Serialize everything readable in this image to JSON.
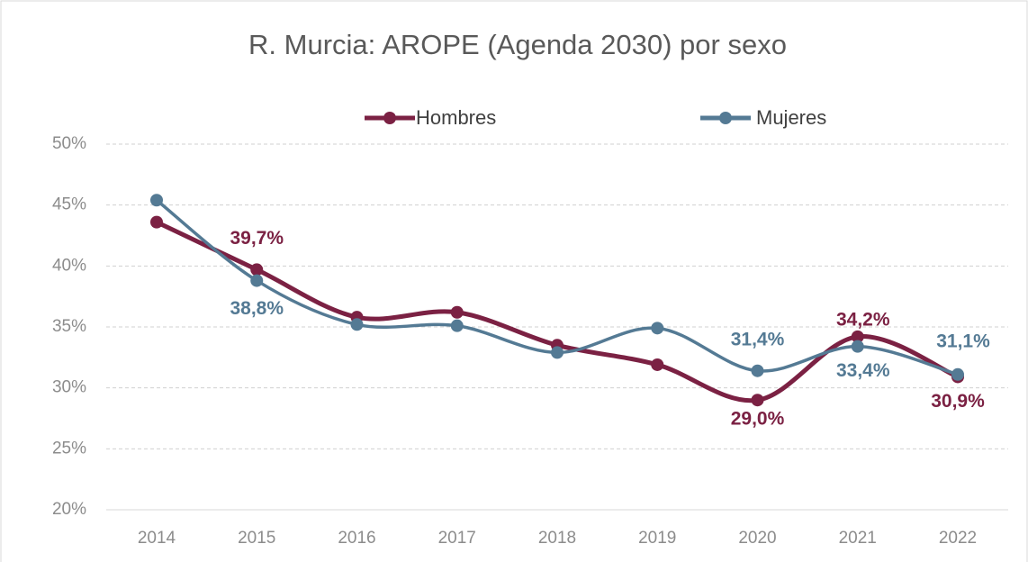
{
  "chart_data": {
    "type": "line",
    "title": "R. Murcia: AROPE (Agenda 2030) por sexo",
    "categories": [
      "2014",
      "2015",
      "2016",
      "2017",
      "2018",
      "2019",
      "2020",
      "2021",
      "2022"
    ],
    "series": [
      {
        "name": "Hombres",
        "color": "#7b2143",
        "values": [
          43.6,
          39.7,
          35.8,
          36.2,
          33.5,
          31.9,
          29.0,
          34.2,
          30.9
        ],
        "value_labels": [
          null,
          "39,7%",
          null,
          null,
          null,
          null,
          "29,0%",
          "34,2%",
          "30,9%"
        ]
      },
      {
        "name": "Mujeres",
        "color": "#547a94",
        "values": [
          45.4,
          38.8,
          35.2,
          35.1,
          32.9,
          34.9,
          31.4,
          33.4,
          31.1
        ],
        "value_labels": [
          null,
          "38,8%",
          null,
          null,
          null,
          null,
          "31,4%",
          "33,4%",
          "31,1%"
        ]
      }
    ],
    "ylim": [
      20,
      50
    ],
    "yticks": [
      {
        "value": 20,
        "label": "20%"
      },
      {
        "value": 25,
        "label": "25%"
      },
      {
        "value": 30,
        "label": "30%"
      },
      {
        "value": 35,
        "label": "35%"
      },
      {
        "value": 40,
        "label": "40%"
      },
      {
        "value": 45,
        "label": "45%"
      },
      {
        "value": 50,
        "label": "50%"
      }
    ],
    "grid": true,
    "legend": "top"
  }
}
